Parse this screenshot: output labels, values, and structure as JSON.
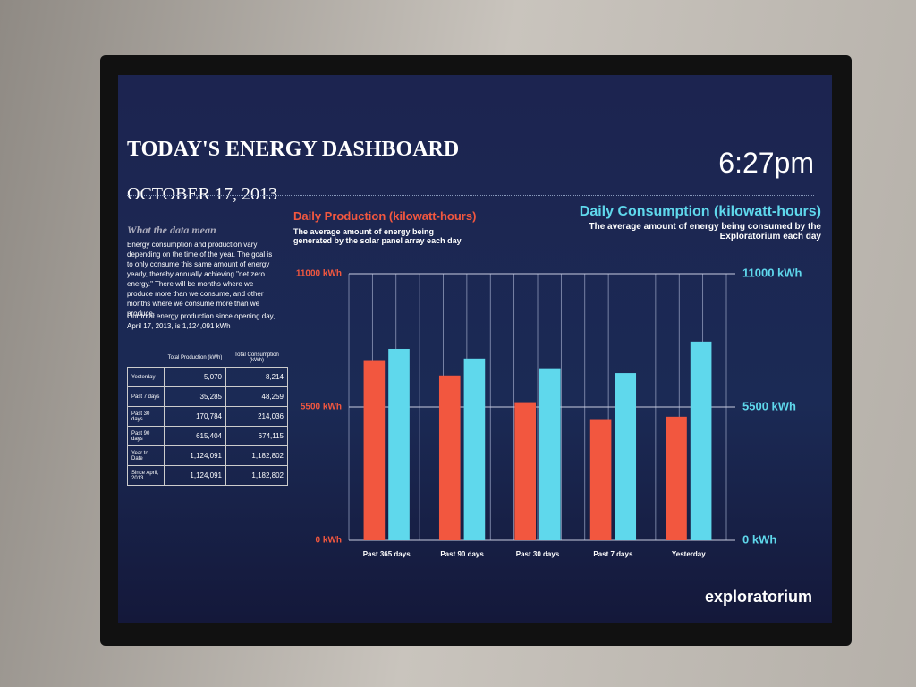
{
  "header": {
    "title": "TODAY'S ENERGY DASHBOARD",
    "date": "OCTOBER 17, 2013",
    "time": "6:27pm"
  },
  "explainer": {
    "heading": "What the data mean",
    "body": "Energy consumption and production vary depending on the time of the year. The goal is to only consume this same amount of energy yearly, thereby annually achieving \"net zero energy.\" There will be months where we produce more than we consume, and other months where we consume more than we produce.",
    "total": "Our total energy production since opening day, April 17, 2013, is 1,124,091 kWh"
  },
  "table": {
    "columns": [
      "Total Production (kWh)",
      "Total Consumption (kWh)"
    ],
    "rows": [
      [
        "Yesterday",
        "5,070",
        "8,214"
      ],
      [
        "Past 7 days",
        "35,285",
        "48,259"
      ],
      [
        "Past 30 days",
        "170,784",
        "214,036"
      ],
      [
        "Past 90 days",
        "615,404",
        "674,115"
      ],
      [
        "Year to Date",
        "1,124,091",
        "1,182,802"
      ],
      [
        "Since April, 2013",
        "1,124,091",
        "1,182,802"
      ]
    ]
  },
  "chart_data": {
    "type": "bar",
    "production_title": "Daily Production (kilowatt-hours)",
    "production_subtitle": "The average amount of energy being generated by the solar panel array each day",
    "consumption_title": "Daily Consumption (kilowatt-hours)",
    "consumption_subtitle": "The average amount of energy being consumed by the Exploratorium each day",
    "categories": [
      "Past 365 days",
      "Past 90 days",
      "Past 30 days",
      "Past 7 days",
      "Yesterday"
    ],
    "series": [
      {
        "name": "Daily Production (kilowatt-hours)",
        "color": "#f2573f",
        "axis": "y",
        "values": [
          7400,
          6800,
          5700,
          5000,
          5100
        ]
      },
      {
        "name": "Daily Consumption (kilowatt-hours)",
        "color": "#5fd8ec",
        "axis": "y2",
        "values": [
          7900,
          7500,
          7100,
          6900,
          8200
        ]
      }
    ],
    "ylim": [
      0,
      11000
    ],
    "yticks": [
      {
        "value": 0,
        "label": "0 kWh"
      },
      {
        "value": 5500,
        "label": "5500 kWh"
      },
      {
        "value": 11000,
        "label": "11000 kWh"
      }
    ],
    "y2lim": [
      0,
      11000
    ],
    "y2ticks": [
      {
        "value": 0,
        "label": "0 kWh"
      },
      {
        "value": 5500,
        "label": "5500 kWh"
      },
      {
        "value": 11000,
        "label": "11000 kWh"
      }
    ],
    "grid": true
  },
  "logo": "exploratorium"
}
